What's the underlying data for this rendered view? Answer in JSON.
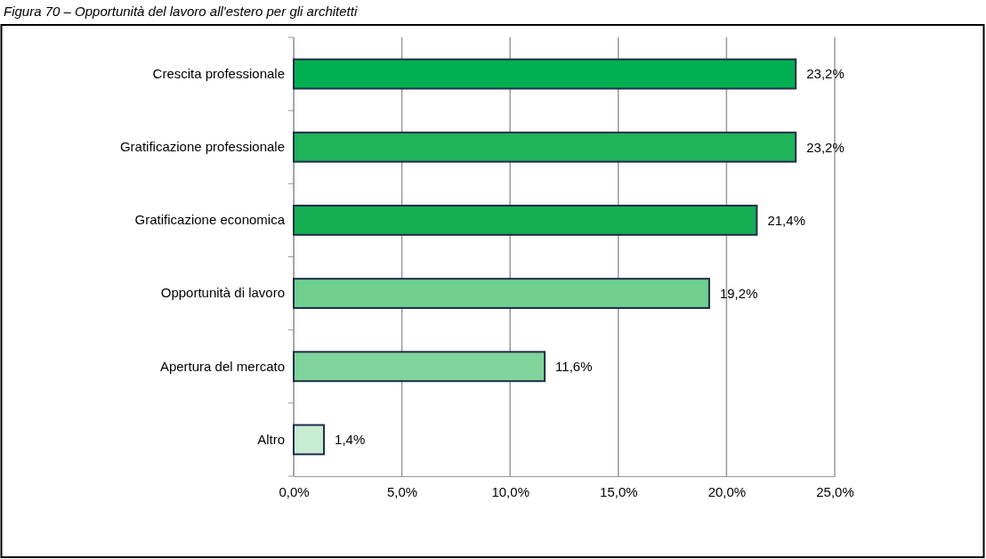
{
  "chart_data": {
    "type": "bar",
    "orientation": "horizontal",
    "title": "Figura 70 – Opportunità del lavoro all'estero per gli architetti",
    "categories": [
      "Crescita professionale",
      "Gratificazione professionale",
      "Gratificazione economica",
      "Opportunità di lavoro",
      "Apertura del mercato",
      "Altro"
    ],
    "values": [
      23.2,
      23.2,
      21.4,
      19.2,
      11.6,
      1.4
    ],
    "colors": [
      "#00b050",
      "#1fb35a",
      "#14ad52",
      "#6ecf8e",
      "#7fd49b",
      "#c8ecd2"
    ],
    "value_labels": [
      "23,2%",
      "23,2%",
      "21,4%",
      "19,2%",
      "11,6%",
      "1,4%"
    ],
    "xlim": [
      0,
      25
    ],
    "xticks": [
      {
        "value": 0,
        "label": "0,0%"
      },
      {
        "value": 5,
        "label": "5,0%"
      },
      {
        "value": 10,
        "label": "10,0%"
      },
      {
        "value": 15,
        "label": "15,0%"
      },
      {
        "value": 20,
        "label": "20,0%"
      },
      {
        "value": 25,
        "label": "25,0%"
      }
    ],
    "grid": "x"
  }
}
